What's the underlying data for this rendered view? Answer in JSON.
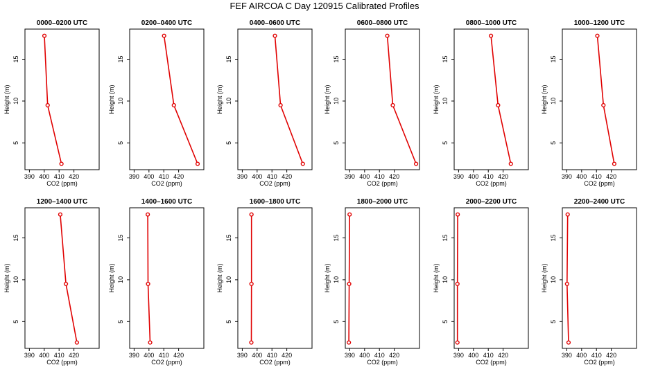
{
  "figure": {
    "title": "FEF AIRCOA C  Day 120915  Calibrated Profiles"
  },
  "chart_data": {
    "type": "line",
    "title": "FEF AIRCOA C  Day 120915  Calibrated Profiles",
    "xlabel": "CO2 (ppm)",
    "ylabel": "Height (m)",
    "xlim": [
      387,
      437
    ],
    "ylim": [
      1.8,
      18.6
    ],
    "xticks": [
      390,
      400,
      410,
      420
    ],
    "yticks": [
      5,
      10,
      15
    ],
    "series_color": "#e00000",
    "panels": [
      {
        "title": "0000–0200 UTC",
        "points": [
          {
            "height": 17.8,
            "co2": 400.1
          },
          {
            "height": 9.5,
            "co2": 402.3
          },
          {
            "height": 2.5,
            "co2": 411.6
          }
        ]
      },
      {
        "title": "0200–0400 UTC",
        "points": [
          {
            "height": 17.8,
            "co2": 410.2
          },
          {
            "height": 9.5,
            "co2": 416.8
          },
          {
            "height": 2.5,
            "co2": 432.8
          }
        ]
      },
      {
        "title": "0400–0600 UTC",
        "points": [
          {
            "height": 17.8,
            "co2": 412.0
          },
          {
            "height": 9.5,
            "co2": 415.8
          },
          {
            "height": 2.5,
            "co2": 430.8
          }
        ]
      },
      {
        "title": "0600–0800 UTC",
        "points": [
          {
            "height": 17.8,
            "co2": 415.3
          },
          {
            "height": 9.5,
            "co2": 419.0
          },
          {
            "height": 2.5,
            "co2": 434.7
          }
        ]
      },
      {
        "title": "0800–1000 UTC",
        "points": [
          {
            "height": 17.8,
            "co2": 411.8
          },
          {
            "height": 9.5,
            "co2": 416.6
          },
          {
            "height": 2.5,
            "co2": 425.2
          }
        ]
      },
      {
        "title": "1000–1200 UTC",
        "points": [
          {
            "height": 17.8,
            "co2": 410.6
          },
          {
            "height": 9.5,
            "co2": 414.7
          },
          {
            "height": 2.5,
            "co2": 422.0
          }
        ]
      },
      {
        "title": "1200–1400 UTC",
        "points": [
          {
            "height": 17.8,
            "co2": 410.8
          },
          {
            "height": 9.5,
            "co2": 414.6
          },
          {
            "height": 2.5,
            "co2": 422.0
          }
        ]
      },
      {
        "title": "1400–1600 UTC",
        "points": [
          {
            "height": 17.8,
            "co2": 399.2
          },
          {
            "height": 9.5,
            "co2": 399.4
          },
          {
            "height": 2.5,
            "co2": 400.8
          }
        ]
      },
      {
        "title": "1600–1800 UTC",
        "points": [
          {
            "height": 17.8,
            "co2": 396.2
          },
          {
            "height": 9.5,
            "co2": 396.2
          },
          {
            "height": 2.5,
            "co2": 396.1
          }
        ]
      },
      {
        "title": "1800–2000 UTC",
        "points": [
          {
            "height": 17.8,
            "co2": 389.9
          },
          {
            "height": 9.5,
            "co2": 389.6
          },
          {
            "height": 2.5,
            "co2": 389.4
          }
        ]
      },
      {
        "title": "2000–2200 UTC",
        "points": [
          {
            "height": 17.8,
            "co2": 389.4
          },
          {
            "height": 9.5,
            "co2": 389.2
          },
          {
            "height": 2.5,
            "co2": 389.2
          }
        ]
      },
      {
        "title": "2200–2400 UTC",
        "points": [
          {
            "height": 17.8,
            "co2": 390.6
          },
          {
            "height": 9.5,
            "co2": 390.2
          },
          {
            "height": 2.5,
            "co2": 391.2
          }
        ]
      }
    ]
  }
}
